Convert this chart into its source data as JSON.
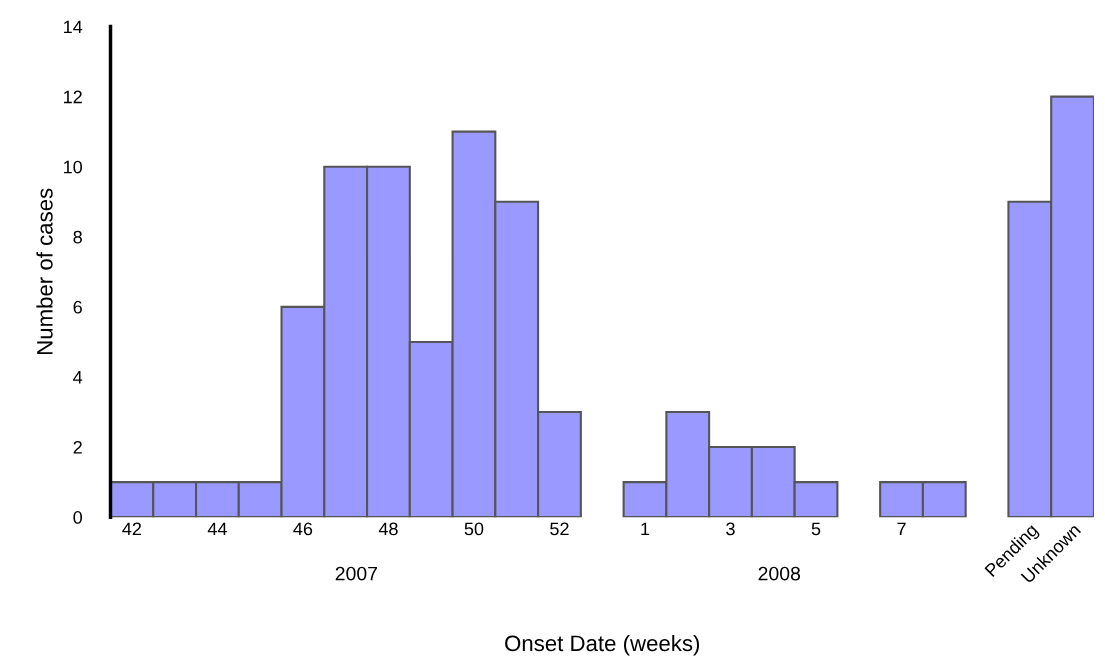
{
  "chart_data": {
    "type": "bar",
    "categories": [
      "42",
      null,
      "44",
      null,
      "46",
      null,
      "48",
      null,
      "50",
      null,
      "52",
      null,
      "1",
      null,
      "3",
      null,
      "5",
      null,
      "7",
      null,
      null,
      "Pending",
      "Unknown"
    ],
    "values": [
      1,
      1,
      1,
      1,
      6,
      10,
      10,
      5,
      11,
      9,
      3,
      null,
      1,
      3,
      2,
      2,
      1,
      null,
      1,
      1,
      null,
      9,
      12
    ],
    "color": "#9999ff",
    "xlabel": "Onset Date (weeks)",
    "ylabel": "Number of cases",
    "ylim": [
      0,
      14
    ],
    "yticks": [
      0,
      2,
      4,
      6,
      8,
      10,
      12,
      14
    ],
    "annotations": [
      "2007",
      "2008"
    ],
    "grid": false,
    "legend": false
  }
}
